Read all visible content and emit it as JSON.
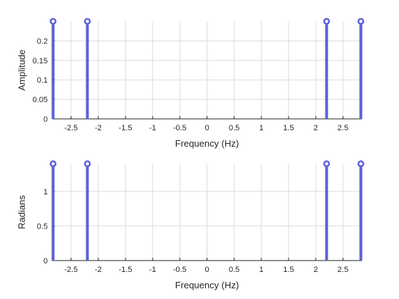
{
  "chart_data": [
    {
      "type": "stem",
      "title": "",
      "xlabel": "Frequency (Hz)",
      "ylabel": "Amplitude",
      "xlim": [
        -2.85,
        2.85
      ],
      "ylim": [
        0,
        0.25
      ],
      "x_ticks": [
        -2.5,
        -2,
        -1.5,
        -1,
        -0.5,
        0,
        0.5,
        1,
        1.5,
        2,
        2.5
      ],
      "x_tick_labels": [
        "-2.5",
        "-2",
        "-1.5",
        "-1",
        "-0.5",
        "0",
        "0.5",
        "1",
        "1.5",
        "2",
        "2.5"
      ],
      "y_ticks": [
        0,
        0.05,
        0.1,
        0.15,
        0.2
      ],
      "y_tick_labels": [
        "0",
        "0.05",
        "0.1",
        "0.15",
        "0.2"
      ],
      "grid": true,
      "color": "#5b62d6",
      "series": [
        {
          "x": [
            -2.83,
            -2.2,
            2.2,
            2.83
          ],
          "y": [
            0.25,
            0.25,
            0.25,
            0.25
          ]
        }
      ]
    },
    {
      "type": "stem",
      "title": "",
      "xlabel": "Frequency (Hz)",
      "ylabel": "Radians",
      "xlim": [
        -2.85,
        2.85
      ],
      "ylim": [
        0,
        1.4
      ],
      "x_ticks": [
        -2.5,
        -2,
        -1.5,
        -1,
        -0.5,
        0,
        0.5,
        1,
        1.5,
        2,
        2.5
      ],
      "x_tick_labels": [
        "-2.5",
        "-2",
        "-1.5",
        "-1",
        "-0.5",
        "0",
        "0.5",
        "1",
        "1.5",
        "2",
        "2.5"
      ],
      "y_ticks": [
        0,
        0.5,
        1
      ],
      "y_tick_labels": [
        "0",
        "0.5",
        "1"
      ],
      "grid": true,
      "color": "#5b62d6",
      "series": [
        {
          "x": [
            -2.83,
            -2.2,
            2.2,
            2.83
          ],
          "y": [
            1.4,
            1.4,
            1.4,
            1.4
          ]
        }
      ]
    }
  ]
}
